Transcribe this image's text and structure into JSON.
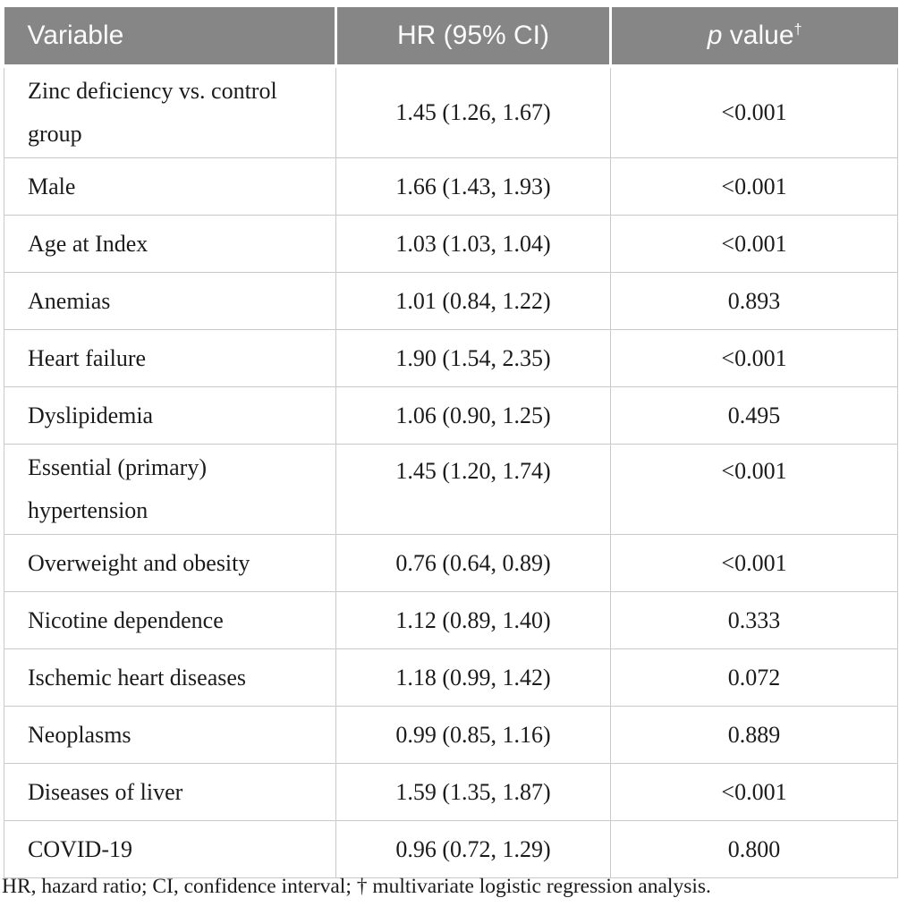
{
  "colors": {
    "header_bg": "#868686",
    "header_text": "#fbfbfb",
    "border": "#c9c9c9",
    "body_text": "#1b1b1b",
    "page_bg": "#ffffff"
  },
  "table": {
    "header": {
      "variable": "Variable",
      "hr": "HR (95% CI)",
      "p_italic": "p",
      "p_rest": " value",
      "p_sup": "†"
    },
    "rows": [
      {
        "variable": "Zinc deficiency vs. control group",
        "hr": "1.45 (1.26, 1.67)",
        "p": "<0.001"
      },
      {
        "variable": "Male",
        "hr": "1.66 (1.43, 1.93)",
        "p": "<0.001"
      },
      {
        "variable": "Age at Index",
        "hr": "1.03 (1.03, 1.04)",
        "p": "<0.001"
      },
      {
        "variable": "Anemias",
        "hr": "1.01 (0.84, 1.22)",
        "p": "0.893"
      },
      {
        "variable": "Heart failure",
        "hr": "1.90 (1.54, 2.35)",
        "p": "<0.001"
      },
      {
        "variable": "Dyslipidemia",
        "hr": "1.06 (0.90, 1.25)",
        "p": "0.495"
      },
      {
        "variable": "Essential (primary) hypertension",
        "hr": "1.45 (1.20, 1.74)",
        "p": "<0.001"
      },
      {
        "variable": "Overweight and obesity",
        "hr": "0.76 (0.64, 0.89)",
        "p": "<0.001"
      },
      {
        "variable": "Nicotine dependence",
        "hr": "1.12 (0.89, 1.40)",
        "p": "0.333"
      },
      {
        "variable": "Ischemic heart diseases",
        "hr": "1.18 (0.99, 1.42)",
        "p": "0.072"
      },
      {
        "variable": "Neoplasms",
        "hr": "0.99 (0.85, 1.16)",
        "p": "0.889"
      },
      {
        "variable": "Diseases of liver",
        "hr": "1.59 (1.35, 1.87)",
        "p": "<0.001"
      },
      {
        "variable": "COVID-19",
        "hr": "0.96 (0.72, 1.29)",
        "p": "0.800"
      }
    ]
  },
  "footnote": "HR, hazard ratio; CI, confidence interval; † multivariate logistic regression analysis."
}
